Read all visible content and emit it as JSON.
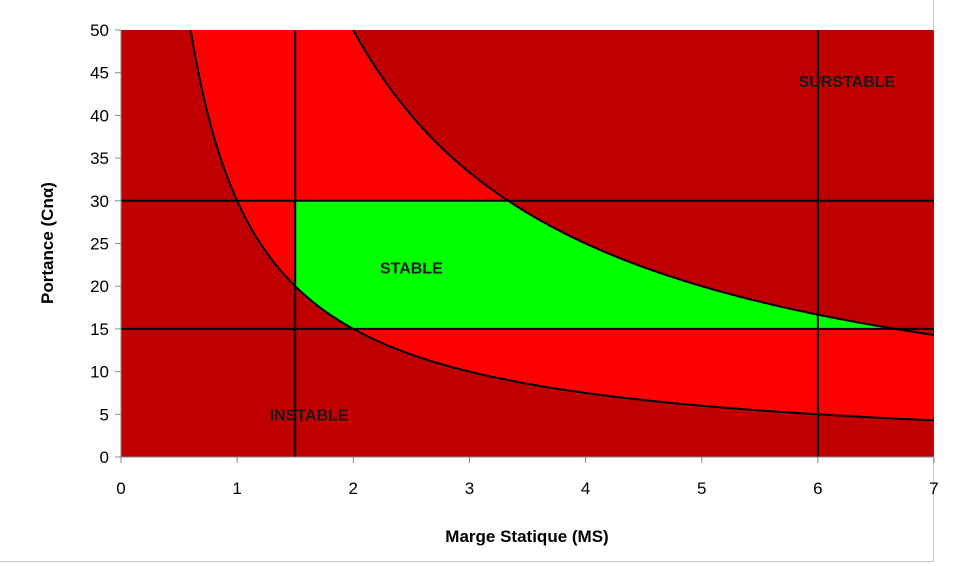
{
  "chart_data": {
    "type": "area",
    "title": "",
    "xlabel": "Marge Statique (MS)",
    "ylabel": "Portance (Cnα)",
    "xlim": [
      0,
      7
    ],
    "ylim": [
      0,
      50
    ],
    "x_ticks": [
      "0",
      "1",
      "2",
      "3",
      "4",
      "5",
      "6",
      "7"
    ],
    "y_ticks": [
      "0",
      "5",
      "10",
      "15",
      "20",
      "25",
      "30",
      "35",
      "40",
      "45",
      "50"
    ],
    "grid": false,
    "legend": "none",
    "curves": [
      {
        "formula": "y = 30 / x",
        "samples": [
          [
            0.6,
            50
          ],
          [
            1,
            30
          ],
          [
            1.5,
            20
          ],
          [
            2,
            15
          ],
          [
            3,
            10
          ],
          [
            4,
            7.5
          ],
          [
            5,
            6
          ],
          [
            6,
            5
          ],
          [
            7,
            4.29
          ]
        ]
      },
      {
        "formula": "y = 100 / x",
        "samples": [
          [
            2,
            50
          ],
          [
            3,
            33.3
          ],
          [
            3.33,
            30
          ],
          [
            4,
            25
          ],
          [
            5,
            20
          ],
          [
            6,
            16.7
          ],
          [
            6.67,
            15
          ],
          [
            7,
            14.3
          ]
        ]
      }
    ],
    "reference_lines": {
      "vertical_x": [
        1.5,
        6
      ],
      "horizontal_y": [
        15,
        30
      ]
    },
    "regions": [
      {
        "label": "SURSTABLE",
        "color": "#c00000",
        "label_pos": [
          6.25,
          44
        ]
      },
      {
        "label": "STABLE",
        "color": "#00ff00",
        "bounds": {
          "x_min": 1.5,
          "y_min": 15,
          "y_max": 30,
          "upper_curve": "y = 100 / x",
          "lower_curve": "y = 30 / x"
        },
        "label_pos": [
          2.5,
          22.2
        ]
      },
      {
        "label": "INSTABLE",
        "color": "#c00000",
        "label_pos": [
          1.62,
          5
        ]
      }
    ],
    "colors": {
      "outer_region": "#c00000",
      "between_curves": "#ff0000",
      "stable_region": "#00ff00",
      "lines": "#000000"
    }
  }
}
